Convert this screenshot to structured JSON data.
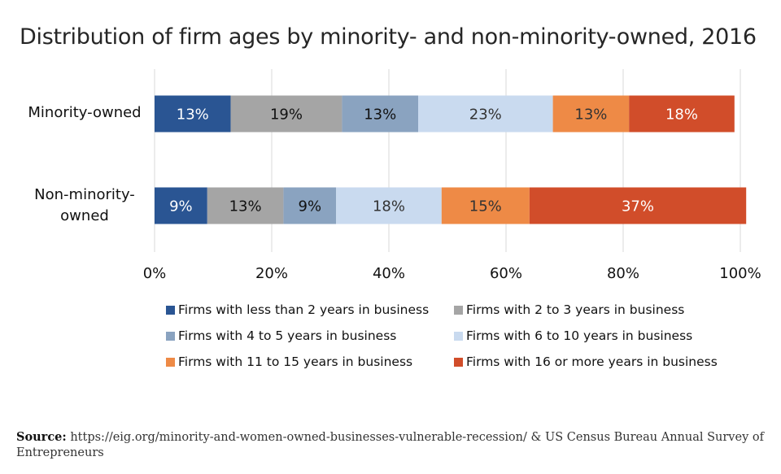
{
  "chart_data": {
    "type": "bar",
    "orientation": "horizontal",
    "stacked": true,
    "title": "Distribution of firm ages by minority- and non-minority-owned, 2016",
    "categories": [
      "Minority-owned",
      "Non-minority-owned"
    ],
    "category_labels": [
      [
        "Minority-owned"
      ],
      [
        "Non-minority-",
        "owned"
      ]
    ],
    "series": [
      {
        "name": "Firms with less than 2 years in business",
        "values": [
          13,
          9
        ],
        "labels": [
          "13%",
          "9%"
        ],
        "color": "#2a5593",
        "text_color": "#ffffff"
      },
      {
        "name": "Firms with 2 to 3 years in business",
        "values": [
          19,
          13
        ],
        "labels": [
          "19%",
          "13%"
        ],
        "color": "#a5a5a5",
        "text_color": "#111111"
      },
      {
        "name": "Firms with 4 to 5 years in business",
        "values": [
          13,
          9
        ],
        "labels": [
          "13%",
          "9%"
        ],
        "color": "#8aa3c0",
        "text_color": "#111111"
      },
      {
        "name": "Firms with 6 to 10 years in business",
        "values": [
          23,
          18
        ],
        "labels": [
          "23%",
          "18%"
        ],
        "color": "#c9daef",
        "text_color": "#333333"
      },
      {
        "name": "Firms with 11 to 15 years in business",
        "values": [
          13,
          15
        ],
        "labels": [
          "13%",
          "15%"
        ],
        "color": "#ee8a46",
        "text_color": "#333333"
      },
      {
        "name": "Firms with 16 or more years in business",
        "values": [
          18,
          37
        ],
        "labels": [
          "18%",
          "37%"
        ],
        "color": "#d14d2a",
        "text_color": "#ffffff"
      }
    ],
    "xlim": [
      0,
      100
    ],
    "xticks": [
      0,
      20,
      40,
      60,
      80,
      100
    ],
    "xtick_labels": [
      "0%",
      "20%",
      "40%",
      "60%",
      "80%",
      "100%"
    ],
    "grid": true,
    "legend_position": "bottom"
  },
  "source": {
    "label": "Source:",
    "text": "https://eig.org/minority-and-women-owned-businesses-vulnerable-recession/ & US Census Bureau Annual Survey of Entrepreneurs"
  }
}
